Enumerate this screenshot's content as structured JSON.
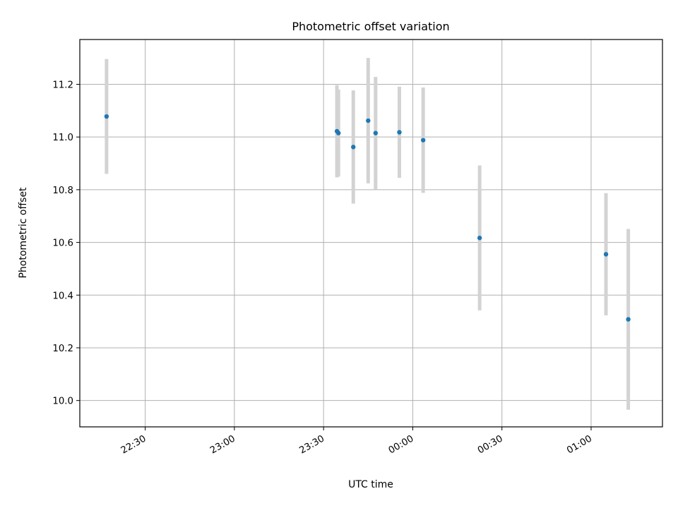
{
  "chart_data": {
    "type": "scatter",
    "title": "Photometric offset variation",
    "xlabel": "UTC time",
    "ylabel": "Photometric offset",
    "xlim": [
      "22:08",
      "01:24"
    ],
    "ylim": [
      9.9,
      11.37
    ],
    "grid": true,
    "x_ticks": [
      "22:30",
      "23:00",
      "23:30",
      "00:00",
      "00:30",
      "01:00"
    ],
    "y_ticks": [
      10.0,
      10.2,
      10.4,
      10.6,
      10.8,
      11.0,
      11.2
    ],
    "y_tick_labels": [
      "10.0",
      "10.2",
      "10.4",
      "10.6",
      "10.8",
      "11.0",
      "11.2"
    ],
    "colors": {
      "points": "#1f77b4",
      "errorbars": "#d3d3d3",
      "grid": "#b0b0b0"
    },
    "series": [
      {
        "points": [
          {
            "time": "22:17:00",
            "y": 11.078,
            "err": 0.218
          },
          {
            "time": "23:34:30",
            "y": 11.022,
            "err": 0.175
          },
          {
            "time": "23:35:00",
            "y": 11.015,
            "err": 0.165
          },
          {
            "time": "23:40:00",
            "y": 10.962,
            "err": 0.215
          },
          {
            "time": "23:45:00",
            "y": 11.062,
            "err": 0.238
          },
          {
            "time": "23:47:30",
            "y": 11.015,
            "err": 0.213
          },
          {
            "time": "23:55:30",
            "y": 11.018,
            "err": 0.173
          },
          {
            "time": "00:03:30",
            "y": 10.988,
            "err": 0.2
          },
          {
            "time": "00:22:30",
            "y": 10.617,
            "err": 0.275
          },
          {
            "time": "01:05:00",
            "y": 10.555,
            "err": 0.232
          },
          {
            "time": "01:12:30",
            "y": 10.308,
            "err": 0.343
          }
        ]
      }
    ]
  }
}
